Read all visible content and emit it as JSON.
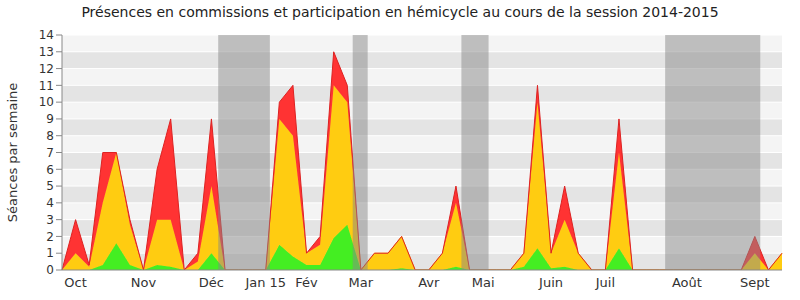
{
  "chart_data": {
    "type": "area",
    "title": "Présences en commissions et participation en hémicycle au cours de la session 2014-2015",
    "y_label": "Séances par semaine",
    "stacked": true,
    "grid": true,
    "categories": [
      null,
      "Oct",
      null,
      null,
      null,
      null,
      "Nov",
      null,
      null,
      null,
      null,
      "Déc",
      null,
      null,
      null,
      "Jan 15",
      null,
      null,
      "Fév",
      null,
      null,
      null,
      "Mar",
      null,
      null,
      null,
      null,
      "Avr",
      null,
      null,
      null,
      "Mai",
      null,
      null,
      null,
      null,
      "Juin",
      null,
      null,
      null,
      "Juil",
      null,
      null,
      null,
      null,
      null,
      "Août",
      null,
      null,
      null,
      null,
      "Sept",
      null,
      null
    ],
    "series": [
      {
        "color": "#44ee22",
        "values": [
          0,
          0,
          0,
          0.3,
          1.6,
          0.3,
          0,
          0.3,
          0.2,
          0,
          0,
          1,
          0,
          0,
          0,
          0,
          1.5,
          0.8,
          0.3,
          0.3,
          1.9,
          2.7,
          0,
          0,
          0,
          0.1,
          0,
          0,
          0,
          0.2,
          0,
          0,
          0,
          0,
          0.2,
          1.3,
          0.1,
          0.2,
          0,
          0,
          0,
          1.3,
          0,
          0,
          0,
          0,
          0,
          0,
          0,
          0,
          0,
          0,
          0,
          0
        ]
      },
      {
        "color": "#ffcc11",
        "values": [
          0,
          1,
          0.2,
          3.7,
          5.4,
          2.4,
          0,
          2.7,
          2.8,
          0,
          0.5,
          4,
          0,
          0,
          0,
          0,
          7.5,
          7.2,
          0.7,
          1.2,
          9.1,
          7.3,
          0,
          1,
          1,
          1.9,
          0,
          0,
          1,
          3.8,
          0,
          0,
          0,
          0,
          0.8,
          8.7,
          0.9,
          2.8,
          1,
          0,
          0,
          5.7,
          0,
          0,
          0,
          0,
          0,
          0,
          0,
          0,
          0,
          1,
          0,
          1
        ]
      },
      {
        "color": "#ff3333",
        "values": [
          0,
          2,
          0.1,
          3,
          0,
          0.3,
          0,
          3,
          6,
          0,
          0.5,
          4,
          0,
          0,
          0,
          0,
          1,
          3,
          0,
          0.5,
          2,
          1,
          0,
          0,
          0,
          0,
          0,
          0,
          0,
          1,
          0,
          0,
          0,
          0,
          0,
          1,
          0,
          2,
          0,
          0,
          0,
          2,
          0,
          0,
          0,
          0,
          0,
          0,
          0,
          0,
          0,
          1,
          0,
          0
        ]
      }
    ],
    "shaded": [
      {
        "from": 11.5,
        "to": 15.3
      },
      {
        "from": 21.4,
        "to": 22.5
      },
      {
        "from": 29.4,
        "to": 31.4
      },
      {
        "from": 44.4,
        "to": 51.4
      }
    ],
    "ylim": [
      0,
      14
    ],
    "yticks": [
      0,
      1,
      2,
      3,
      4,
      5,
      6,
      7,
      8,
      9,
      10,
      11,
      12,
      13,
      14
    ]
  }
}
